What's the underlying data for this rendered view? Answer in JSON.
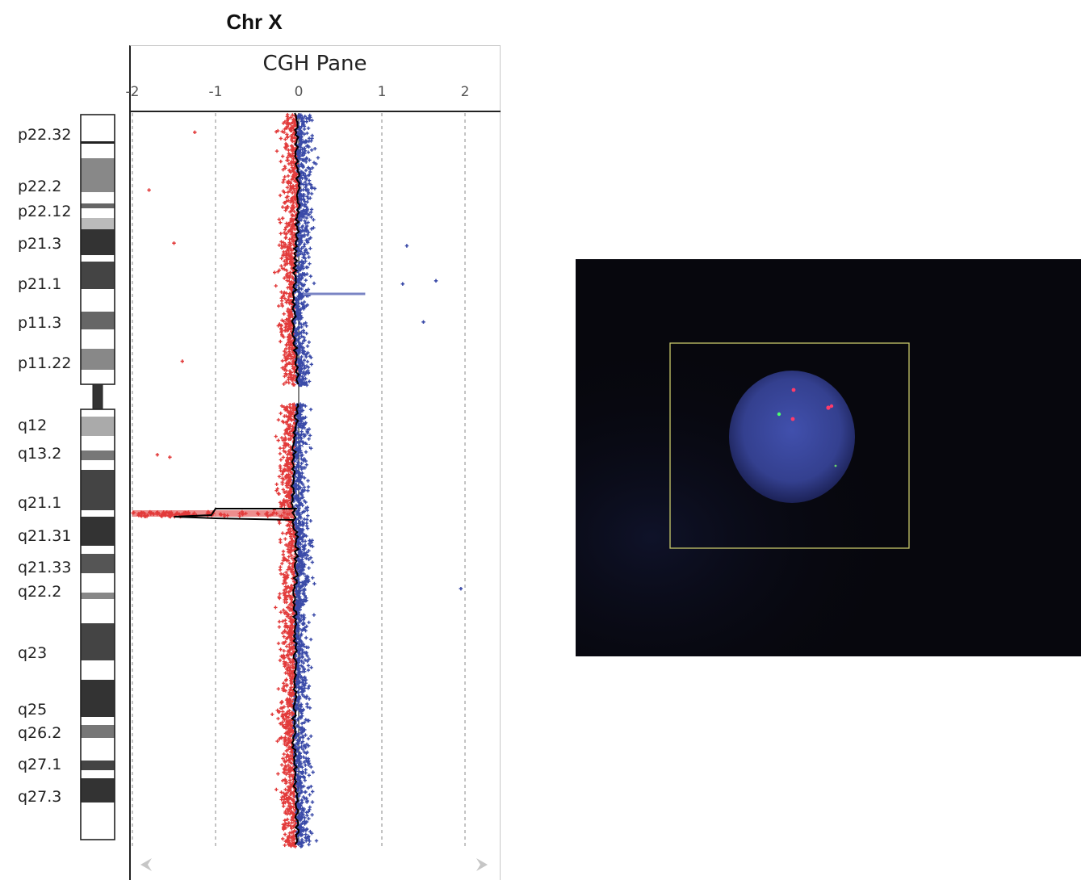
{
  "chromosome_title": "Chr X",
  "chart_data": {
    "type": "scatter",
    "title": "CGH Pane",
    "x_ticks": [
      "-2",
      "-1",
      "0",
      "1",
      "2"
    ],
    "xlim": [
      -2,
      2
    ],
    "grid": "dashed vertical lines at -2, -1, 1, 2; solid line at 0",
    "colors": {
      "loss": "#e23a3a",
      "gain": "#3a4aa8",
      "trend": "#000000",
      "guide": "#888888"
    },
    "series": [
      {
        "values_desc": "log ratio point cloud",
        "x_center": [
          -0.03,
          -0.02,
          0.0,
          -0.03,
          -0.05,
          -0.06,
          -0.02,
          -0.03,
          -0.06,
          -0.08,
          -0.02,
          -0.04,
          -0.05,
          -0.03,
          -0.06,
          -0.05,
          -0.03,
          -0.02
        ],
        "loss_region": {
          "approx_x": -1.5,
          "x_range": [
            -2.0,
            -0.05
          ],
          "extends_to_band": "q21.1"
        }
      }
    ],
    "outliers_gain": [
      [
        1.65,
        "p21.1"
      ],
      [
        1.5,
        "p11.3"
      ],
      [
        1.3,
        "p21.3"
      ],
      [
        1.25,
        "p21.1"
      ],
      [
        1.95,
        "q22.2"
      ]
    ],
    "outliers_loss": [
      [
        -1.25,
        "p22.32"
      ],
      [
        -1.8,
        "p22.2"
      ],
      [
        -1.5,
        "p21.3"
      ],
      [
        -1.4,
        "p11.22"
      ],
      [
        -1.7,
        "q13.2"
      ],
      [
        -1.55,
        "q13.2"
      ]
    ]
  },
  "ideogram": {
    "bands": [
      "p22.32",
      "p22.2",
      "p22.12",
      "p21.3",
      "p21.1",
      "p11.3",
      "p11.22",
      "q12",
      "q13.2",
      "q21.1",
      "q21.31",
      "q21.33",
      "q22.2",
      "q23",
      "q25",
      "q26.2",
      "q27.1",
      "q27.3"
    ]
  },
  "fish_image": {
    "background": "#07070d",
    "nucleus_color": "#3b4aa6",
    "roi_border_color": "#c8c86a",
    "signals": {
      "red": 4,
      "green": 2
    }
  },
  "scroll": {
    "left_icon": "left-arrow-icon",
    "right_icon": "right-arrow-icon"
  }
}
